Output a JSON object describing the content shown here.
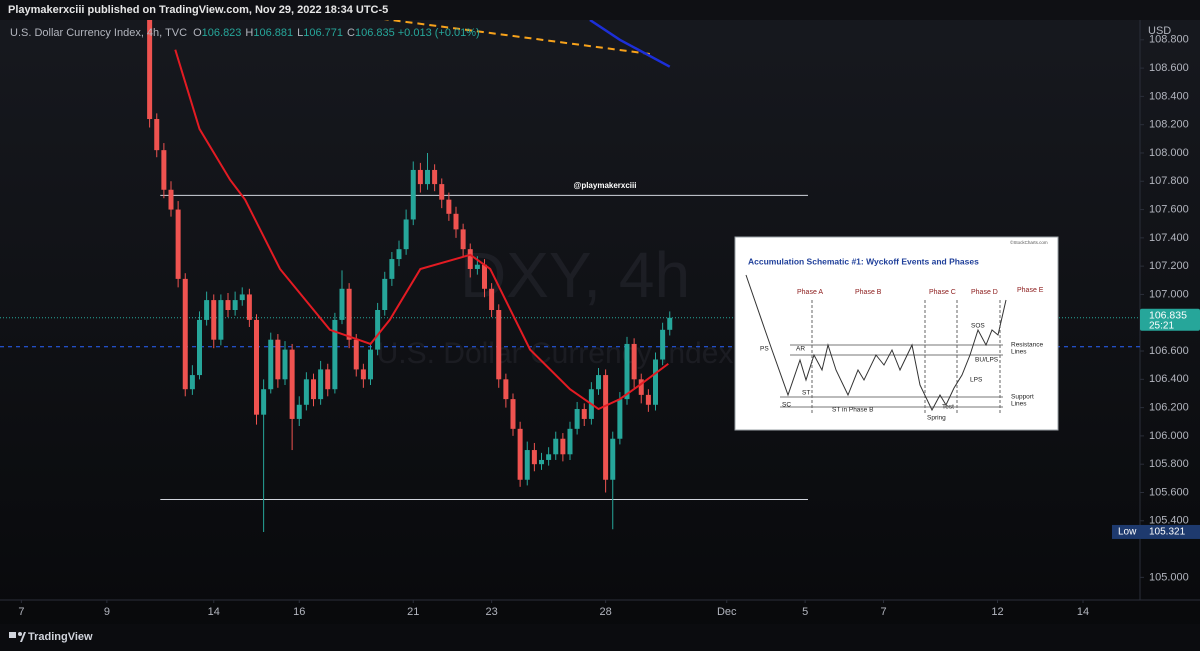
{
  "header": {
    "published": "Playmakerxciii published on TradingView.com, Nov 29, 2022 18:34 UTC-5",
    "symbol": "U.S. Dollar Currency Index, 4h, TVC",
    "ohlc": [
      {
        "key": "O",
        "value": 106.823
      },
      {
        "key": "H",
        "value": 106.881
      },
      {
        "key": "L",
        "value": 106.771
      },
      {
        "key": "C",
        "value": 106.835
      }
    ],
    "change": "+0.013 (+0.01%)",
    "currency": "USD"
  },
  "chart_data": {
    "type": "candlestick",
    "watermark": "DXY, 4h",
    "watermark_sub": "U.S. Dollar Currency Index",
    "annotation": "@playmakerxciii",
    "up_color": "#26a69a",
    "down_color": "#ef5350",
    "xlim": [
      -3,
      157
    ],
    "ylim": [
      104.84,
      108.94
    ],
    "xticks": [
      {
        "value": 0,
        "label": "7"
      },
      {
        "value": 12,
        "label": "9"
      },
      {
        "value": 27,
        "label": "14"
      },
      {
        "value": 39,
        "label": "16"
      },
      {
        "value": 55,
        "label": "21"
      },
      {
        "value": 66,
        "label": "23"
      },
      {
        "value": 82,
        "label": "28"
      },
      {
        "value": 99,
        "label": "Dec"
      },
      {
        "value": 110,
        "label": "5"
      },
      {
        "value": 121,
        "label": "7"
      },
      {
        "value": 137,
        "label": "12"
      },
      {
        "value": 149,
        "label": "14"
      }
    ],
    "yticks": [
      {
        "value": 108.8,
        "label": "108.800"
      },
      {
        "value": 108.6,
        "label": "108.600"
      },
      {
        "value": 108.4,
        "label": "108.400"
      },
      {
        "value": 108.2,
        "label": "108.200"
      },
      {
        "value": 108,
        "label": "108.000"
      },
      {
        "value": 107.8,
        "label": "107.800"
      },
      {
        "value": 107.6,
        "label": "107.600"
      },
      {
        "value": 107.4,
        "label": "107.400"
      },
      {
        "value": 107.2,
        "label": "107.200"
      },
      {
        "value": 107,
        "label": "107.000"
      },
      {
        "value": 106.6,
        "label": "106.600"
      },
      {
        "value": 106.4,
        "label": "106.400"
      },
      {
        "value": 106.2,
        "label": "106.200"
      },
      {
        "value": 106,
        "label": "106.000"
      },
      {
        "value": 105.8,
        "label": "105.800"
      },
      {
        "value": 105.6,
        "label": "105.600"
      },
      {
        "value": 105.4,
        "label": "105.400"
      },
      {
        "value": 105,
        "label": "105.000"
      }
    ],
    "x": [
      18,
      19,
      20,
      21,
      22,
      23,
      24,
      25,
      26,
      27,
      28,
      29,
      30,
      31,
      32,
      33,
      34,
      35,
      36,
      37,
      38,
      39,
      40,
      41,
      42,
      43,
      44,
      45,
      46,
      47,
      48,
      49,
      50,
      51,
      52,
      53,
      54,
      55,
      56,
      57,
      58,
      59,
      60,
      61,
      62,
      63,
      64,
      65,
      66,
      67,
      68,
      69,
      70,
      71,
      72,
      73,
      74,
      75,
      76,
      77,
      78,
      79,
      80,
      81,
      82,
      83,
      84,
      85,
      86,
      87,
      88,
      89,
      90,
      91
    ],
    "open": [
      108.95,
      108.24,
      108.02,
      107.74,
      107.6,
      107.11,
      106.33,
      106.43,
      106.82,
      106.96,
      106.68,
      106.96,
      106.89,
      106.96,
      107.0,
      106.82,
      106.15,
      106.33,
      106.68,
      106.4,
      106.61,
      106.12,
      106.22,
      106.4,
      106.26,
      106.47,
      106.33,
      106.82,
      107.04,
      106.68,
      106.47,
      106.4,
      106.61,
      106.89,
      107.11,
      107.25,
      107.32,
      107.53,
      107.88,
      107.78,
      107.88,
      107.78,
      107.67,
      107.57,
      107.46,
      107.32,
      107.18,
      107.21,
      107.04,
      106.89,
      106.4,
      106.26,
      106.05,
      105.69,
      105.9,
      105.8,
      105.83,
      105.87,
      105.98,
      105.87,
      106.05,
      106.19,
      106.12,
      106.33,
      106.43,
      105.69,
      105.98,
      106.26,
      106.65,
      106.4,
      106.29,
      106.22,
      106.54,
      106.75
    ],
    "high": [
      108.97,
      108.28,
      108.07,
      107.8,
      107.66,
      107.15,
      106.5,
      106.88,
      107.02,
      107.0,
      107.0,
      107.01,
      107.02,
      107.05,
      107.04,
      106.86,
      106.4,
      106.73,
      106.72,
      106.67,
      106.65,
      106.28,
      106.45,
      106.44,
      106.53,
      106.51,
      106.87,
      107.17,
      107.08,
      106.72,
      106.51,
      106.66,
      106.94,
      107.16,
      107.3,
      107.38,
      107.6,
      107.94,
      107.93,
      108.0,
      107.92,
      107.82,
      107.72,
      107.62,
      107.5,
      107.36,
      107.27,
      107.25,
      107.08,
      106.93,
      106.44,
      106.3,
      106.1,
      105.96,
      105.95,
      105.88,
      105.92,
      106.03,
      106.02,
      106.1,
      106.24,
      106.23,
      106.38,
      106.48,
      106.47,
      106.03,
      106.31,
      106.7,
      106.69,
      106.44,
      106.33,
      106.59,
      106.8,
      106.88
    ],
    "low": [
      108.18,
      107.97,
      107.68,
      107.55,
      107.05,
      106.28,
      106.29,
      106.4,
      106.78,
      106.62,
      106.64,
      106.84,
      106.85,
      106.92,
      106.77,
      106.08,
      105.321,
      106.3,
      106.34,
      106.36,
      105.9,
      106.07,
      106.18,
      106.21,
      106.22,
      106.28,
      106.3,
      106.79,
      106.62,
      106.42,
      106.34,
      106.36,
      106.57,
      106.85,
      107.06,
      107.2,
      107.28,
      107.49,
      107.72,
      107.74,
      107.73,
      107.61,
      107.52,
      107.4,
      107.27,
      107.12,
      107.14,
      106.98,
      106.84,
      106.34,
      106.2,
      106.0,
      105.64,
      105.65,
      105.75,
      105.76,
      105.79,
      105.83,
      105.82,
      105.83,
      106.01,
      106.07,
      106.08,
      106.29,
      105.6,
      105.34,
      105.94,
      106.22,
      106.34,
      106.23,
      106.17,
      106.18,
      106.5,
      106.71
    ],
    "close": [
      108.24,
      108.02,
      107.74,
      107.6,
      107.11,
      106.33,
      106.43,
      106.82,
      106.96,
      106.68,
      106.96,
      106.89,
      106.96,
      107.0,
      106.82,
      106.15,
      106.33,
      106.68,
      106.4,
      106.61,
      106.12,
      106.22,
      106.4,
      106.26,
      106.47,
      106.33,
      106.82,
      107.04,
      106.68,
      106.47,
      106.4,
      106.61,
      106.89,
      107.11,
      107.25,
      107.32,
      107.53,
      107.88,
      107.78,
      107.88,
      107.78,
      107.67,
      107.57,
      107.46,
      107.32,
      107.18,
      107.21,
      107.04,
      106.89,
      106.4,
      106.26,
      106.05,
      105.69,
      105.9,
      105.8,
      105.83,
      105.87,
      105.98,
      105.87,
      106.05,
      106.19,
      106.12,
      106.33,
      106.43,
      105.69,
      105.98,
      106.26,
      106.65,
      106.4,
      106.29,
      106.22,
      106.54,
      106.75,
      106.835
    ],
    "ma": {
      "color": "#e31b23",
      "x": [
        21.6,
        25,
        29.3,
        31.4,
        36.3,
        43.3,
        49,
        51.7,
        56,
        63,
        65.8,
        71.4,
        77,
        81,
        84,
        86.8,
        90.8
      ],
      "values": [
        108.73,
        108.17,
        107.81,
        107.67,
        107.18,
        106.75,
        106.65,
        106.82,
        107.18,
        107.28,
        107.18,
        106.61,
        106.33,
        106.19,
        106.26,
        106.36,
        106.51
      ]
    },
    "levels": [
      {
        "value": 107.7,
        "x": [
          19.5,
          110.4
        ],
        "color": "#d1d4dc"
      },
      {
        "value": 105.55,
        "x": [
          19.5,
          110.4
        ],
        "color": "#d1d4dc"
      }
    ],
    "dashed_level": {
      "value": 106.63,
      "color": "#2962ff"
    },
    "trendlines": [
      {
        "color": "#f7a21b",
        "dashed": true,
        "x": [
          48.9,
          88.2
        ],
        "values": [
          108.96,
          108.7
        ]
      },
      {
        "color": "#1c2fd8",
        "dashed": false,
        "x": [
          79.8,
          84,
          91
        ],
        "values": [
          108.94,
          108.8,
          108.61
        ]
      }
    ],
    "last_price": 106.835,
    "countdown": "25:21",
    "low_label": "Low",
    "low_value": 105.321
  },
  "inset": {
    "title": "Accumulation Schematic #1: Wyckoff Events and Phases",
    "credit": "©StockCharts.com",
    "phases": [
      "Phase A",
      "Phase B",
      "Phase C",
      "Phase D",
      "Phase E"
    ],
    "events": [
      "PS",
      "SC",
      "AR",
      "ST",
      "ST in Phase B",
      "Spring",
      "Test",
      "LPS",
      "SOS",
      "BU/LPS"
    ],
    "resistance": [
      "Resistance",
      "Lines"
    ],
    "support": [
      "Support",
      "Lines"
    ]
  },
  "footer": {
    "brand": "TradingView"
  }
}
